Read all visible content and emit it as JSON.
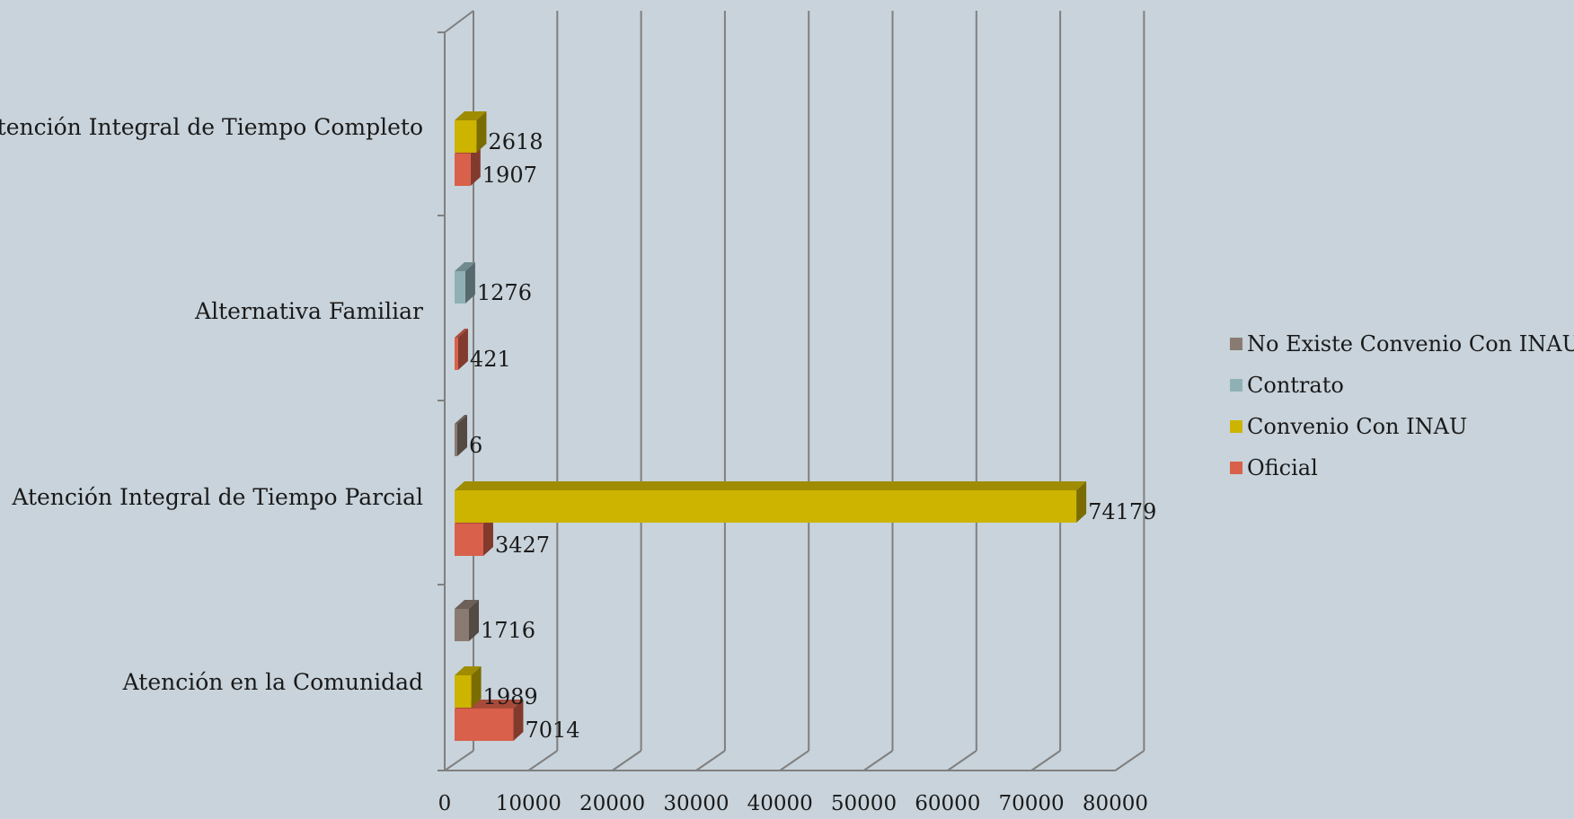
{
  "chart_data": {
    "type": "bar",
    "orientation": "horizontal",
    "style": "3d-clustered",
    "categories": [
      "Atención en la Comunidad",
      "Atención Integral de Tiempo Parcial",
      "Alternativa Familiar",
      "Atención Integral de Tiempo Completo"
    ],
    "series": [
      {
        "name": "Oficial",
        "color": "#d9604a",
        "values": [
          7014,
          3427,
          421,
          1907
        ]
      },
      {
        "name": "Convenio Con INAU",
        "color": "#ccb400",
        "values": [
          1989,
          74179,
          null,
          2618
        ]
      },
      {
        "name": "Contrato",
        "color": "#8fb1b5",
        "values": [
          null,
          null,
          1276,
          null
        ]
      },
      {
        "name": "No Existe Convenio Con INAU",
        "color": "#8a7b72",
        "values": [
          1716,
          6,
          null,
          null
        ]
      }
    ],
    "xlim": [
      0,
      80000
    ],
    "xticks": [
      "0",
      "10000",
      "20000",
      "30000",
      "40000",
      "50000",
      "60000",
      "70000",
      "80000"
    ],
    "grid": true,
    "legend": "right",
    "legend_order": [
      "No Existe Convenio Con INAU",
      "Contrato",
      "Convenio Con INAU",
      "Oficial"
    ],
    "title": "",
    "xlabel": "",
    "ylabel": ""
  }
}
